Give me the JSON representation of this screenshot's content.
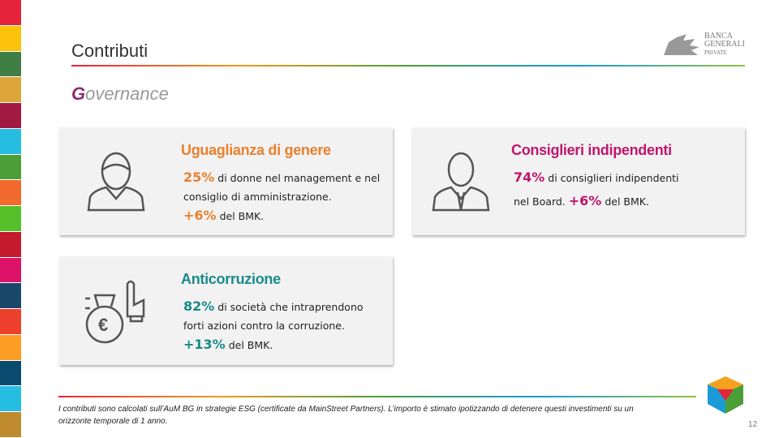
{
  "header": {
    "title": "Contributi",
    "logo": [
      "BANCA",
      "GENERALI",
      "PRIVATE"
    ]
  },
  "section": "Governance",
  "cards": [
    {
      "title": "Uguaglianza di genere",
      "stat": "25%",
      "stat_text": "di donne nel management e nel consiglio di amministrazione.",
      "bmk": "+6%",
      "bmk_text": "del BMK."
    },
    {
      "title": "Consiglieri indipendenti",
      "stat": "74%",
      "stat_text": "di consiglieri indipendenti nel Board.",
      "bmk": "+6%",
      "bmk_text": "del BMK."
    },
    {
      "title": "Anticorruzione",
      "stat": "82%",
      "stat_text": "di società che intraprendono forti azioni contro la corruzione.",
      "bmk": "+13%",
      "bmk_text": "del BMK."
    }
  ],
  "footnote": "I contributi sono calcolati sull’AuM BG in strategie ESG (certificate da MainStreet Partners). L’importo è stimato ipotizzando di detenere questi investimenti su un orizzonte temporale di 1 anno.",
  "page_number": "12"
}
